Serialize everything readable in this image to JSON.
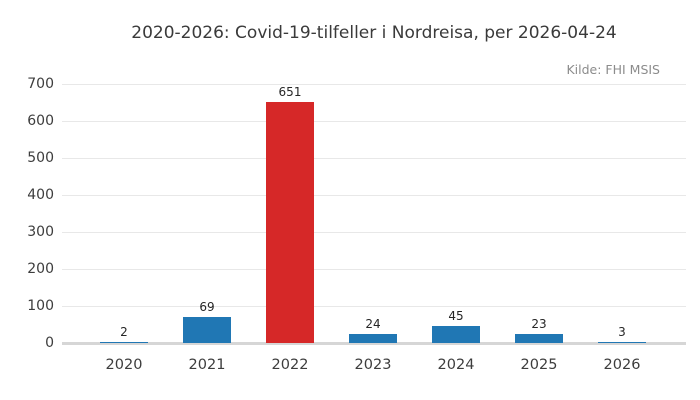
{
  "chart_data": {
    "type": "bar",
    "title": "2020-2026: Covid-19-tilfeller i Nordreisa, per 2026-04-24",
    "source": "Kilde: FHI MSIS",
    "categories": [
      "2020",
      "2021",
      "2022",
      "2023",
      "2024",
      "2025",
      "2026"
    ],
    "values": [
      2,
      69,
      651,
      24,
      45,
      23,
      3
    ],
    "bar_labels": [
      "2",
      "69",
      "651",
      "24",
      "45",
      "23",
      "3"
    ],
    "highlight_category": "2022",
    "colors": {
      "bar": "#2077b4",
      "highlight_bar": "#d62828",
      "gridline": "#e8e8e8",
      "baseline": "#d6d6d6",
      "title_text": "#3a3a3a",
      "source_text": "#8c8c8c",
      "tick_text": "#3d3d3d",
      "value_text": "#262626"
    },
    "xlabel": "",
    "ylabel": "",
    "ylim": [
      0,
      700
    ],
    "yticks": [
      0,
      100,
      200,
      300,
      400,
      500,
      600,
      700
    ],
    "grid": "horizontal",
    "legend": "none"
  }
}
